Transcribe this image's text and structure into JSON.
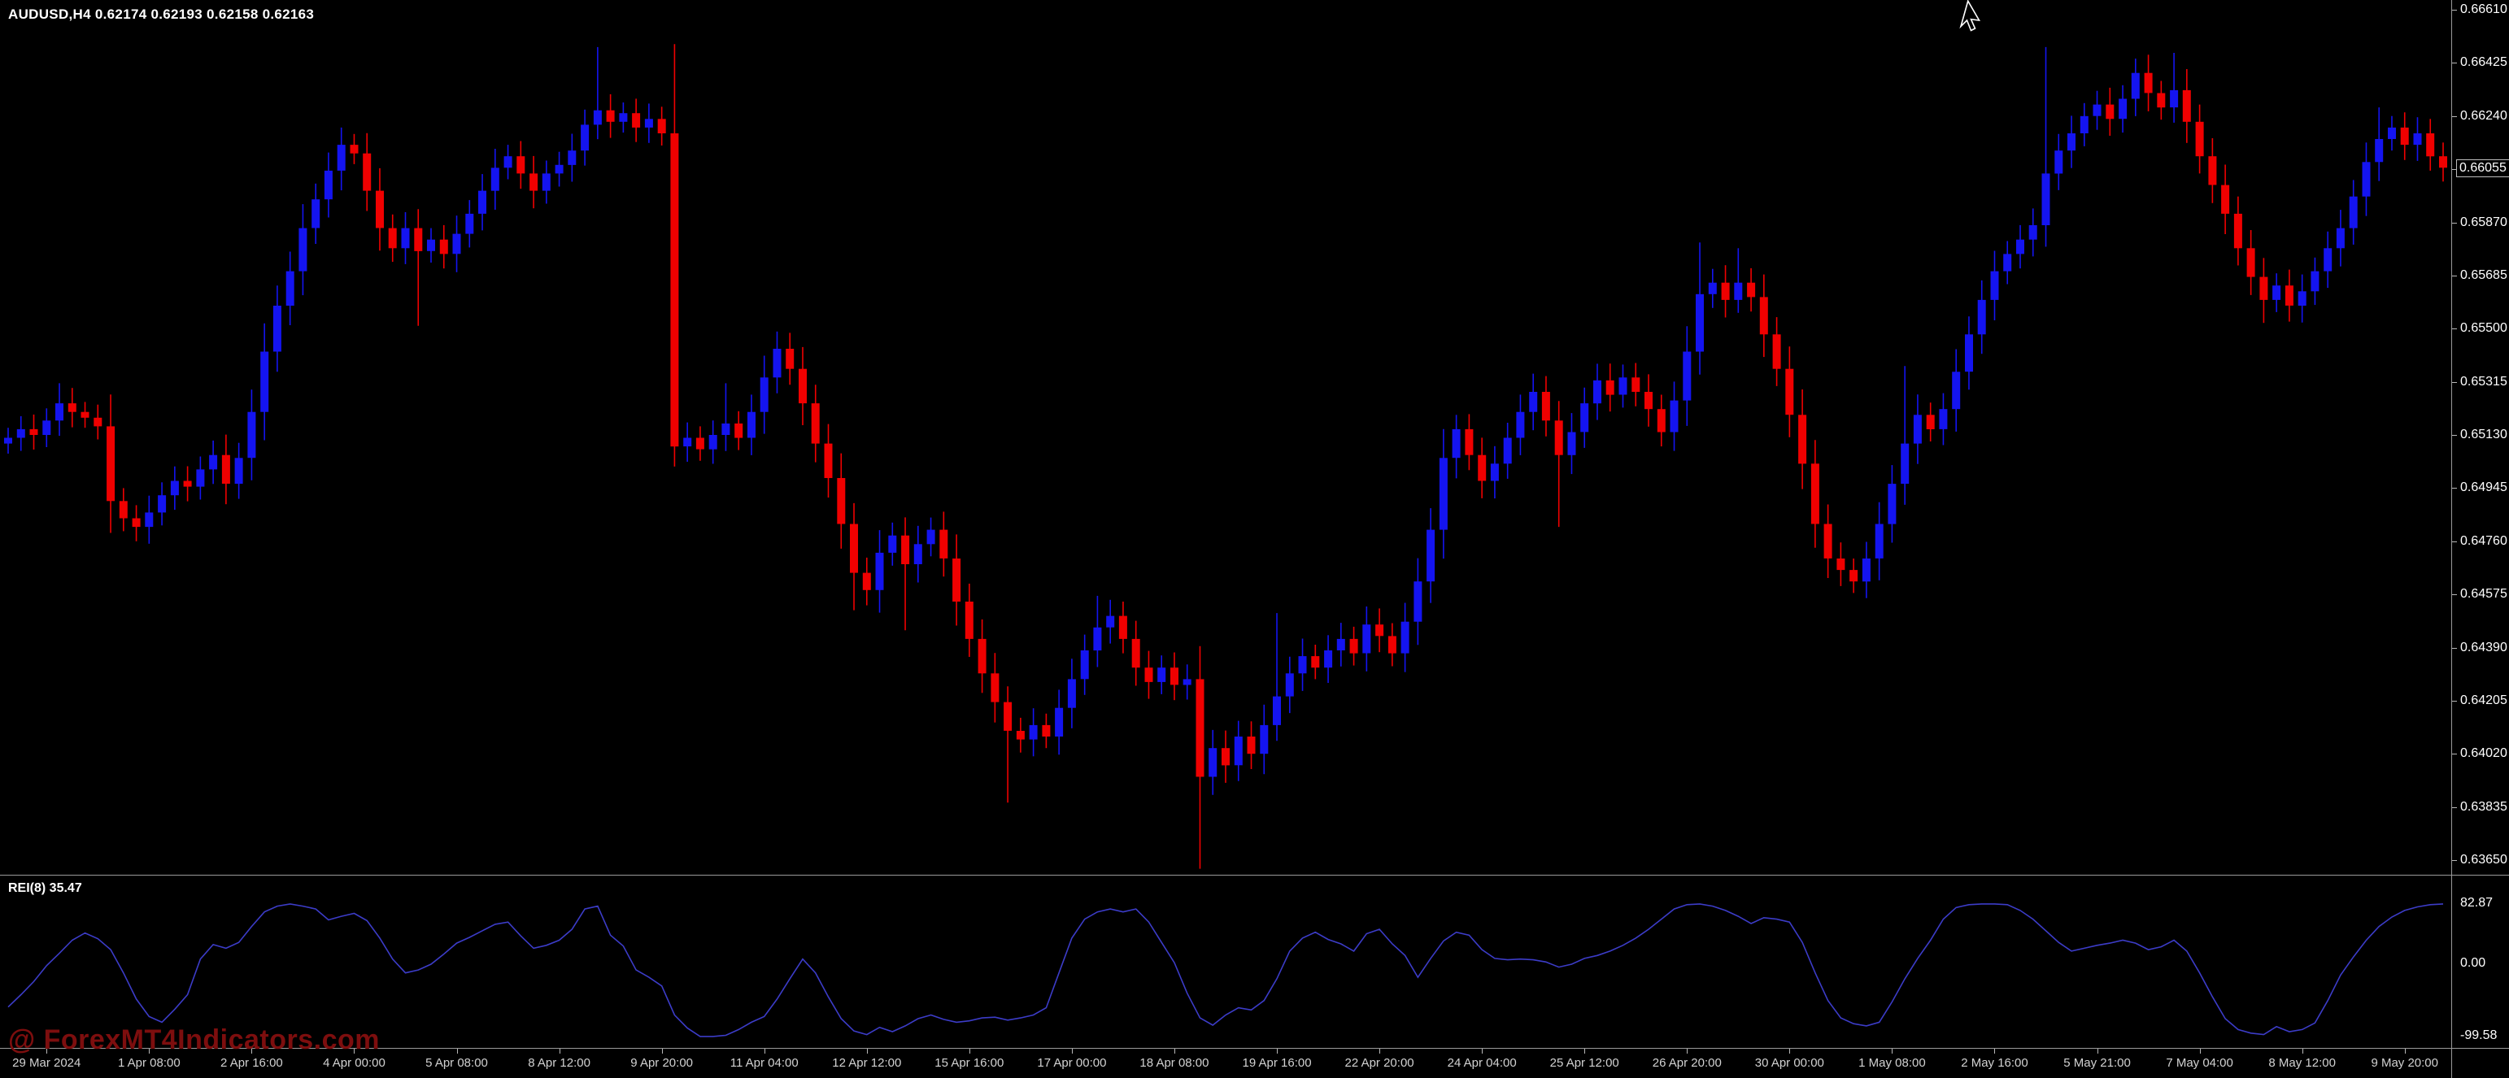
{
  "header": {
    "symbol_period": "AUDUSD,H4",
    "ohlc": {
      "open": "0.62174",
      "high": "0.62193",
      "low": "0.62158",
      "close": "0.62163"
    },
    "title_full": "AUDUSD,H4  0.62174 0.62193 0.62158 0.62163"
  },
  "watermark": {
    "text": "@ ForexMT4Indicators.com",
    "color": "#7d0e0e"
  },
  "price_axis": {
    "labels": [
      "0.66610",
      "0.66425",
      "0.66240",
      "0.66055",
      "0.65870",
      "0.65685",
      "0.65500",
      "0.65315",
      "0.65130",
      "0.64945",
      "0.64760",
      "0.64575",
      "0.64390",
      "0.64205",
      "0.64020",
      "0.63835",
      "0.63650"
    ],
    "current_price": "0.66055"
  },
  "time_axis": {
    "labels": [
      "29 Mar 2024",
      "1 Apr 08:00",
      "2 Apr 16:00",
      "4 Apr 00:00",
      "5 Apr 08:00",
      "8 Apr 12:00",
      "9 Apr 20:00",
      "11 Apr 04:00",
      "12 Apr 12:00",
      "15 Apr 16:00",
      "17 Apr 00:00",
      "18 Apr 08:00",
      "19 Apr 16:00",
      "22 Apr 20:00",
      "24 Apr 04:00",
      "25 Apr 12:00",
      "26 Apr 20:00",
      "30 Apr 00:00",
      "1 May 08:00",
      "2 May 16:00",
      "5 May 21:00",
      "7 May 04:00",
      "8 May 12:00",
      "9 May 20:00"
    ]
  },
  "indicator": {
    "label": "REI(8) 35.47",
    "name": "REI",
    "period": "8",
    "value": "35.47",
    "axis_labels": [
      "82.87",
      "0.00",
      "-99.58"
    ]
  },
  "colors": {
    "background": "#000000",
    "bull": "#1414f0",
    "bear": "#f00000",
    "indicator_line": "#3c3cc8",
    "axis_text": "#ffffff",
    "separator": "#9a9a9a"
  },
  "chart_data": {
    "type": "candlestick",
    "symbol": "AUDUSD",
    "timeframe": "H4",
    "title": "AUDUSD,H4",
    "price_range": {
      "min": 0.6365,
      "max": 0.6661,
      "tick_step": 0.00185
    },
    "candles": {
      "first_open": 0.651,
      "closes": [
        0.6512,
        0.6515,
        0.6513,
        0.6518,
        0.6524,
        0.6521,
        0.6519,
        0.6516,
        0.649,
        0.6484,
        0.6481,
        0.6486,
        0.6492,
        0.6497,
        0.6495,
        0.6501,
        0.6506,
        0.6496,
        0.6505,
        0.6521,
        0.6542,
        0.6558,
        0.657,
        0.6585,
        0.6595,
        0.6605,
        0.6614,
        0.6611,
        0.6598,
        0.6585,
        0.6578,
        0.6585,
        0.6577,
        0.6581,
        0.6576,
        0.6583,
        0.659,
        0.6598,
        0.6606,
        0.661,
        0.6604,
        0.6598,
        0.6604,
        0.6607,
        0.6612,
        0.6621,
        0.6626,
        0.6622,
        0.6625,
        0.662,
        0.6623,
        0.6618,
        0.6509,
        0.6512,
        0.6508,
        0.6513,
        0.6517,
        0.6512,
        0.6521,
        0.6533,
        0.6543,
        0.6536,
        0.6524,
        0.651,
        0.6498,
        0.6482,
        0.6465,
        0.6459,
        0.6472,
        0.6478,
        0.6468,
        0.6475,
        0.648,
        0.647,
        0.6455,
        0.6442,
        0.643,
        0.642,
        0.641,
        0.6407,
        0.6412,
        0.6408,
        0.6418,
        0.6428,
        0.6438,
        0.6446,
        0.645,
        0.6442,
        0.6432,
        0.6427,
        0.6432,
        0.6426,
        0.6428,
        0.6394,
        0.6404,
        0.6398,
        0.6408,
        0.6402,
        0.6412,
        0.6422,
        0.643,
        0.6436,
        0.6432,
        0.6438,
        0.6442,
        0.6437,
        0.6447,
        0.6443,
        0.6437,
        0.6448,
        0.6462,
        0.648,
        0.6505,
        0.6515,
        0.6506,
        0.6497,
        0.6503,
        0.6512,
        0.6521,
        0.6528,
        0.6518,
        0.6506,
        0.6514,
        0.6524,
        0.6532,
        0.6527,
        0.6533,
        0.6528,
        0.6522,
        0.6514,
        0.6525,
        0.6542,
        0.6562,
        0.6566,
        0.656,
        0.6566,
        0.6561,
        0.6548,
        0.6536,
        0.652,
        0.6503,
        0.6482,
        0.647,
        0.6466,
        0.6462,
        0.647,
        0.6482,
        0.6496,
        0.651,
        0.652,
        0.6515,
        0.6522,
        0.6535,
        0.6548,
        0.656,
        0.657,
        0.6576,
        0.6581,
        0.6586,
        0.6604,
        0.6612,
        0.6618,
        0.6624,
        0.6628,
        0.6623,
        0.663,
        0.6639,
        0.6632,
        0.6627,
        0.6633,
        0.6622,
        0.661,
        0.66,
        0.659,
        0.6578,
        0.6568,
        0.656,
        0.6565,
        0.6558,
        0.6563,
        0.657,
        0.6578,
        0.6585,
        0.6596,
        0.6608,
        0.6616,
        0.662,
        0.6614,
        0.6618,
        0.661,
        0.6606
      ],
      "wick_overrides": {
        "4": {
          "h": 0.6531
        },
        "10": {
          "l": 0.6476
        },
        "26": {
          "h": 0.662
        },
        "32": {
          "l": 0.6551
        },
        "46": {
          "h": 0.6648
        },
        "52": {
          "l": 0.6502
        },
        "56": {
          "h": 0.6531
        },
        "60": {
          "h": 0.6549
        },
        "66": {
          "l": 0.6452
        },
        "70": {
          "l": 0.6445
        },
        "78": {
          "l": 0.6385
        },
        "85": {
          "h": 0.6457
        },
        "93": {
          "l": 0.6362
        },
        "99": {
          "h": 0.6451
        },
        "113": {
          "h": 0.652
        },
        "121": {
          "l": 0.6481
        },
        "132": {
          "h": 0.658
        },
        "135": {
          "h": 0.6578
        },
        "144": {
          "l": 0.6458
        },
        "148": {
          "h": 0.6537
        },
        "159": {
          "h": 0.6648
        },
        "166": {
          "h": 0.6644
        },
        "169": {
          "h": 0.6646
        },
        "176": {
          "l": 0.6552
        },
        "185": {
          "h": 0.6627
        }
      }
    },
    "indicator_series": {
      "name": "REI(8)",
      "range": [
        -100,
        100
      ],
      "values": [
        -59,
        -42,
        -24,
        -2,
        15,
        33,
        43,
        35,
        20,
        -12,
        -48,
        -72,
        -80,
        -62,
        -42,
        7,
        27,
        22,
        30,
        52,
        72,
        80,
        83,
        80,
        76,
        61,
        66,
        70,
        60,
        36,
        7,
        -12,
        -8,
        0,
        14,
        29,
        37,
        46,
        55,
        58,
        39,
        22,
        26,
        33,
        48,
        76,
        80,
        40,
        25,
        -8,
        -18,
        -30,
        -70,
        -88,
        -99.6,
        -99.6,
        -98,
        -90,
        -80,
        -72,
        -48,
        -20,
        7,
        -12,
        -45,
        -75,
        -92,
        -97,
        -87,
        -93,
        -85,
        -75,
        -70,
        -76,
        -80,
        -78,
        -74,
        -73,
        -77,
        -74,
        -70,
        -60,
        -12,
        36,
        62,
        72,
        76,
        72,
        76,
        58,
        30,
        2,
        -40,
        -74,
        -84,
        -70,
        -60,
        -63,
        -50,
        -20,
        18,
        36,
        44,
        34,
        28,
        18,
        42,
        48,
        28,
        12,
        -18,
        8,
        32,
        44,
        40,
        20,
        8,
        6,
        7,
        6,
        3,
        -4,
        0,
        8,
        12,
        18,
        26,
        36,
        48,
        62,
        76,
        82,
        83,
        80,
        74,
        66,
        56,
        64,
        62,
        58,
        30,
        -12,
        -50,
        -74,
        -82,
        -85,
        -80,
        -52,
        -20,
        8,
        33,
        62,
        78,
        82,
        83,
        83,
        82,
        74,
        62,
        46,
        30,
        18,
        22,
        26,
        29,
        33,
        29,
        20,
        24,
        33,
        18,
        -12,
        -45,
        -75,
        -90,
        -95,
        -97,
        -86,
        -93,
        -90,
        -81,
        -50,
        -15,
        10,
        33,
        52,
        65,
        74,
        79,
        82,
        83
      ]
    },
    "x_label_bar_indexes": [
      3,
      11,
      19,
      27,
      35,
      43,
      51,
      59,
      67,
      75,
      83,
      91,
      99,
      107,
      115,
      123,
      131,
      139,
      147,
      155,
      163,
      171,
      179,
      187
    ]
  }
}
